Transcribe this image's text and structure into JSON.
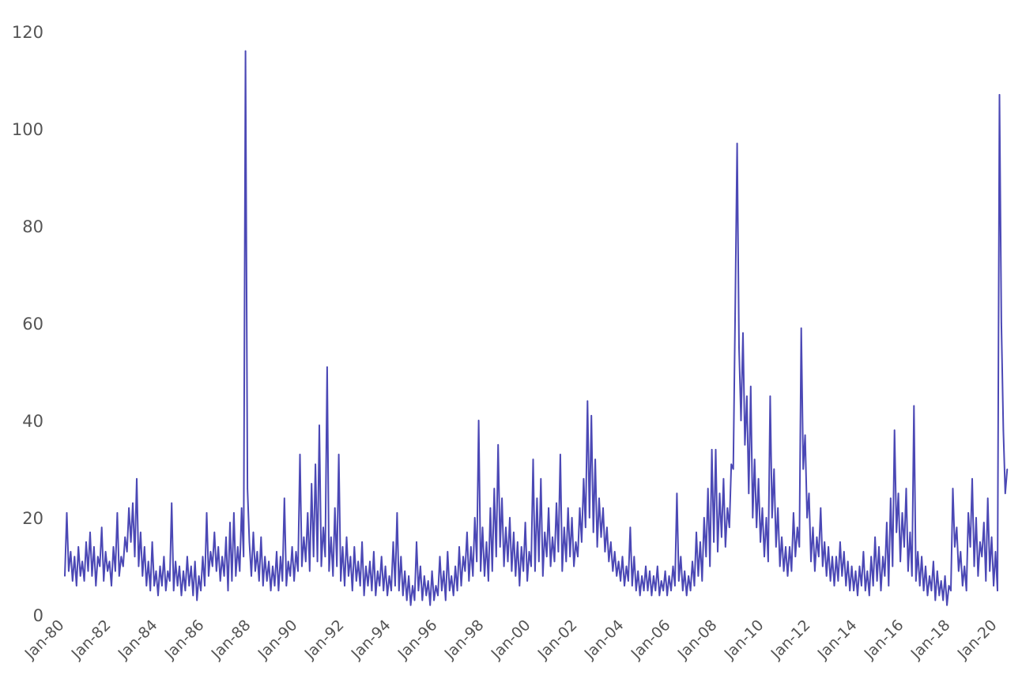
{
  "chart_data": {
    "type": "line",
    "title": "",
    "xlabel": "",
    "ylabel": "",
    "ylim": [
      0,
      120
    ],
    "yticks": [
      "0",
      "20",
      "40",
      "60",
      "80",
      "100",
      "120"
    ],
    "xticks": [
      "Jan-80",
      "Jan-82",
      "Jan-84",
      "Jan-86",
      "Jan-88",
      "Jan-90",
      "Jan-92",
      "Jan-94",
      "Jan-96",
      "Jan-98",
      "Jan-00",
      "Jan-02",
      "Jan-04",
      "Jan-06",
      "Jan-08",
      "Jan-10",
      "Jan-12",
      "Jan-14",
      "Jan-16",
      "Jan-18",
      "Jan-20"
    ],
    "grid": false,
    "legend": "none",
    "line_color": "#4b48b5",
    "x_start": "Jan-80",
    "x_frequency": "monthly",
    "values": [
      8,
      21,
      9,
      13,
      7,
      12,
      6,
      14,
      8,
      11,
      7,
      15,
      9,
      17,
      8,
      14,
      6,
      12,
      10,
      18,
      7,
      13,
      9,
      11,
      6,
      14,
      9,
      21,
      8,
      12,
      10,
      16,
      13,
      22,
      15,
      23,
      12,
      28,
      10,
      17,
      8,
      14,
      6,
      11,
      5,
      15,
      6,
      9,
      4,
      10,
      6,
      12,
      5,
      9,
      7,
      23,
      5,
      11,
      6,
      10,
      4,
      9,
      5,
      12,
      6,
      10,
      4,
      11,
      3,
      8,
      5,
      12,
      6,
      21,
      8,
      13,
      10,
      17,
      9,
      14,
      7,
      12,
      8,
      16,
      5,
      19,
      7,
      21,
      8,
      14,
      9,
      22,
      12,
      116,
      26,
      15,
      8,
      17,
      9,
      13,
      7,
      16,
      6,
      12,
      7,
      11,
      5,
      10,
      6,
      13,
      5,
      12,
      7,
      24,
      6,
      11,
      8,
      14,
      7,
      13,
      9,
      33,
      10,
      16,
      11,
      21,
      9,
      27,
      12,
      31,
      11,
      39,
      10,
      18,
      12,
      51,
      9,
      16,
      8,
      22,
      10,
      33,
      7,
      14,
      6,
      16,
      8,
      12,
      5,
      14,
      7,
      11,
      6,
      15,
      4,
      10,
      6,
      11,
      5,
      13,
      4,
      9,
      6,
      12,
      5,
      10,
      4,
      8,
      5,
      15,
      6,
      21,
      5,
      12,
      4,
      9,
      3,
      8,
      2,
      6,
      3,
      15,
      5,
      10,
      3,
      8,
      4,
      7,
      2,
      9,
      3,
      6,
      4,
      12,
      5,
      9,
      3,
      13,
      5,
      8,
      4,
      10,
      5,
      14,
      6,
      12,
      9,
      17,
      7,
      14,
      8,
      20,
      11,
      40,
      9,
      18,
      8,
      15,
      7,
      22,
      9,
      26,
      12,
      35,
      14,
      24,
      10,
      18,
      11,
      20,
      9,
      17,
      8,
      15,
      6,
      14,
      9,
      19,
      7,
      13,
      10,
      32,
      9,
      24,
      11,
      28,
      8,
      17,
      12,
      22,
      10,
      16,
      11,
      23,
      13,
      33,
      9,
      18,
      11,
      22,
      12,
      20,
      10,
      15,
      12,
      22,
      15,
      28,
      18,
      44,
      20,
      41,
      17,
      32,
      14,
      24,
      16,
      22,
      13,
      18,
      11,
      15,
      9,
      13,
      8,
      11,
      7,
      12,
      6,
      10,
      7,
      18,
      6,
      12,
      5,
      9,
      4,
      8,
      5,
      10,
      5,
      9,
      4,
      8,
      5,
      10,
      4,
      7,
      5,
      9,
      4,
      8,
      5,
      10,
      6,
      25,
      7,
      12,
      5,
      9,
      4,
      8,
      5,
      11,
      6,
      17,
      8,
      15,
      7,
      20,
      12,
      26,
      10,
      34,
      15,
      34,
      13,
      25,
      16,
      28,
      14,
      22,
      18,
      31,
      30,
      62,
      97,
      55,
      40,
      58,
      35,
      45,
      25,
      47,
      20,
      32,
      18,
      28,
      15,
      22,
      12,
      20,
      11,
      45,
      20,
      30,
      14,
      22,
      10,
      16,
      9,
      14,
      8,
      14,
      9,
      21,
      12,
      18,
      14,
      59,
      30,
      37,
      20,
      25,
      11,
      18,
      9,
      16,
      12,
      22,
      10,
      15,
      8,
      14,
      7,
      12,
      6,
      12,
      7,
      15,
      8,
      13,
      6,
      11,
      5,
      10,
      5,
      9,
      4,
      10,
      6,
      13,
      5,
      9,
      4,
      12,
      6,
      16,
      7,
      14,
      5,
      12,
      8,
      19,
      6,
      24,
      10,
      38,
      17,
      25,
      11,
      21,
      14,
      26,
      9,
      17,
      8,
      43,
      7,
      13,
      6,
      12,
      5,
      10,
      4,
      8,
      5,
      11,
      3,
      9,
      4,
      7,
      3,
      8,
      2,
      6,
      5,
      26,
      14,
      18,
      9,
      13,
      6,
      10,
      5,
      21,
      14,
      28,
      10,
      20,
      8,
      15,
      12,
      19,
      7,
      24,
      9,
      16,
      6,
      13,
      5,
      107,
      60,
      38,
      25,
      30
    ]
  }
}
